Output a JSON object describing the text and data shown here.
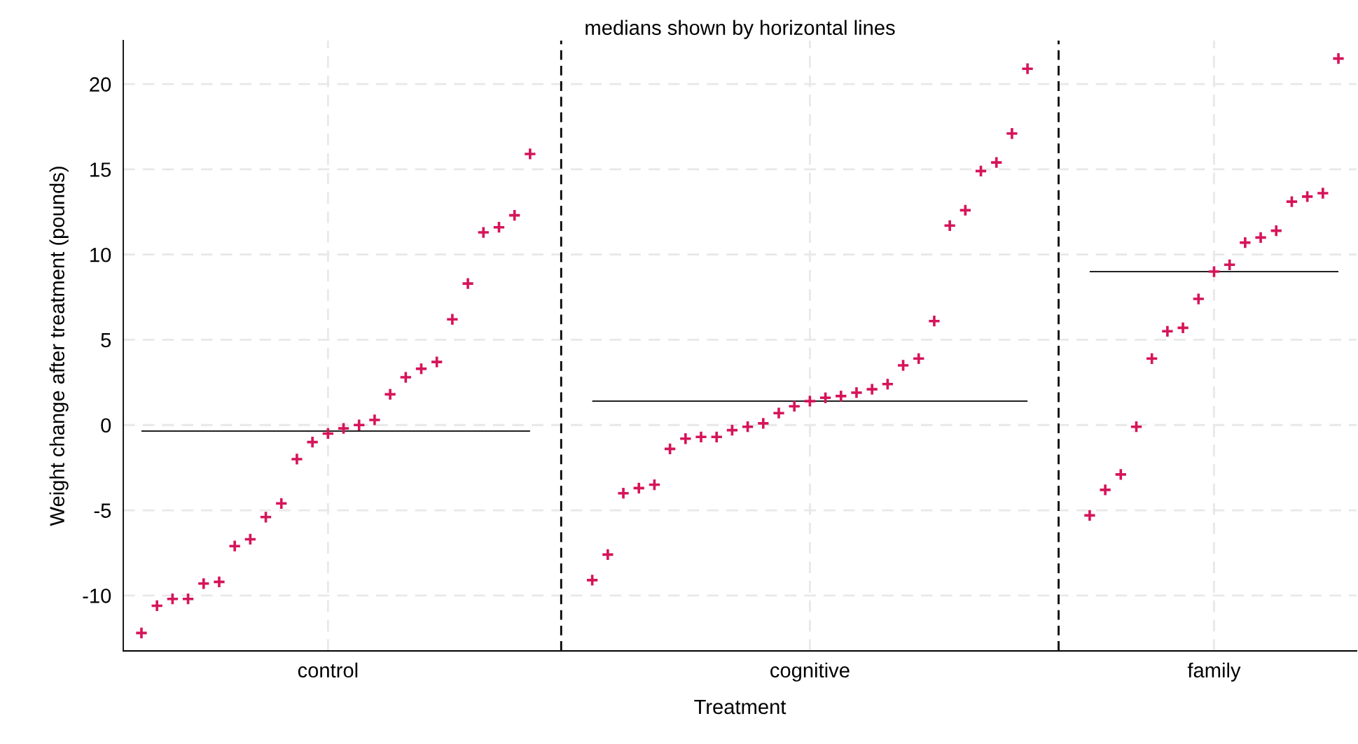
{
  "chart_data": {
    "type": "scatter",
    "title": "medians shown by horizontal lines",
    "xlabel": "Treatment",
    "ylabel": "Weight change after treatment (pounds)",
    "categories": [
      null,
      null,
      null,
      null,
      null,
      null,
      null,
      null,
      null,
      null,
      null,
      null,
      "control",
      null,
      null,
      null,
      null,
      null,
      null,
      null,
      null,
      null,
      null,
      null,
      null,
      null,
      null,
      null,
      null,
      null,
      null,
      null,
      null,
      null,
      null,
      null,
      null,
      null,
      null,
      null,
      null,
      null,
      null,
      "cognitive",
      null,
      null,
      null,
      null,
      null,
      null,
      null,
      null,
      null,
      null,
      null,
      null,
      null,
      null,
      null,
      null,
      null,
      null,
      null,
      null,
      null,
      null,
      null,
      null,
      null,
      "family",
      null,
      null,
      null,
      null,
      null,
      null,
      null,
      null
    ],
    "ylim": [
      -13.25,
      22.55
    ],
    "yticks": [
      -10,
      -5,
      0,
      5,
      10,
      15,
      20
    ],
    "grid": true,
    "series": [
      {
        "color": "#d6145a",
        "marker": "cross",
        "values": [
          -12.2,
          -10.6,
          -10.2,
          -10.2,
          -9.3,
          -9.2,
          -7.1,
          -6.7,
          -5.4,
          -4.6,
          -2.0,
          -1.0,
          -0.5,
          -0.2,
          0.0,
          0.3,
          1.8,
          2.8,
          3.3,
          3.7,
          6.2,
          8.3,
          11.3,
          11.6,
          12.3,
          15.9,
          null,
          null,
          null,
          -9.1,
          -7.6,
          -4.0,
          -3.7,
          -3.5,
          -1.4,
          -0.8,
          -0.7,
          -0.7,
          -0.3,
          -0.1,
          0.1,
          0.7,
          1.1,
          1.4,
          1.6,
          1.7,
          1.9,
          2.1,
          2.4,
          3.5,
          3.9,
          6.1,
          11.7,
          12.6,
          14.9,
          15.4,
          17.1,
          20.9,
          null,
          null,
          null,
          -5.3,
          -3.8,
          -2.9,
          -0.1,
          3.9,
          5.5,
          5.7,
          7.4,
          9.0,
          9.4,
          10.7,
          11.0,
          11.4,
          13.1,
          13.4,
          13.6,
          21.5
        ]
      },
      {
        "type": "line",
        "color": "#000000",
        "marker": "none",
        "values": [
          -0.35,
          -0.35,
          -0.35,
          -0.35,
          -0.35,
          -0.35,
          -0.35,
          -0.35,
          -0.35,
          -0.35,
          -0.35,
          -0.35,
          -0.35,
          -0.35,
          -0.35,
          -0.35,
          -0.35,
          -0.35,
          -0.35,
          -0.35,
          -0.35,
          -0.35,
          -0.35,
          -0.35,
          -0.35,
          -0.35,
          null,
          null,
          null,
          null,
          null,
          null,
          null,
          null,
          null,
          null,
          null,
          null,
          null,
          null,
          null,
          null,
          null,
          null,
          null,
          null,
          null,
          null,
          null,
          null,
          null,
          null,
          null,
          null,
          null,
          null,
          null,
          null,
          null,
          null,
          null,
          null,
          null,
          null,
          null,
          null,
          null,
          null,
          null,
          null,
          null,
          null,
          null,
          null,
          null,
          null,
          null,
          null
        ]
      },
      {
        "type": "line",
        "color": "#000000",
        "marker": "none",
        "values": [
          null,
          null,
          null,
          null,
          null,
          null,
          null,
          null,
          null,
          null,
          null,
          null,
          null,
          null,
          null,
          null,
          null,
          null,
          null,
          null,
          null,
          null,
          null,
          null,
          null,
          null,
          null,
          null,
          null,
          1.4,
          1.4,
          1.4,
          1.4,
          1.4,
          1.4,
          1.4,
          1.4,
          1.4,
          1.4,
          1.4,
          1.4,
          1.4,
          1.4,
          1.4,
          1.4,
          1.4,
          1.4,
          1.4,
          1.4,
          1.4,
          1.4,
          1.4,
          1.4,
          1.4,
          1.4,
          1.4,
          1.4,
          1.4,
          null,
          null,
          null,
          null,
          null,
          null,
          null,
          null,
          null,
          null,
          null,
          null,
          null,
          null,
          null,
          null,
          null,
          null,
          null,
          null
        ]
      },
      {
        "type": "line",
        "color": "#000000",
        "marker": "none",
        "values": [
          null,
          null,
          null,
          null,
          null,
          null,
          null,
          null,
          null,
          null,
          null,
          null,
          null,
          null,
          null,
          null,
          null,
          null,
          null,
          null,
          null,
          null,
          null,
          null,
          null,
          null,
          null,
          null,
          null,
          null,
          null,
          null,
          null,
          null,
          null,
          null,
          null,
          null,
          null,
          null,
          null,
          null,
          null,
          null,
          null,
          null,
          null,
          null,
          null,
          null,
          null,
          null,
          null,
          null,
          null,
          null,
          null,
          null,
          null,
          null,
          null,
          9.0,
          9.0,
          9.0,
          9.0,
          9.0,
          9.0,
          9.0,
          9.0,
          9.0,
          9.0,
          9.0,
          9.0,
          9.0,
          9.0,
          9.0,
          9.0,
          9.0
        ]
      }
    ]
  }
}
